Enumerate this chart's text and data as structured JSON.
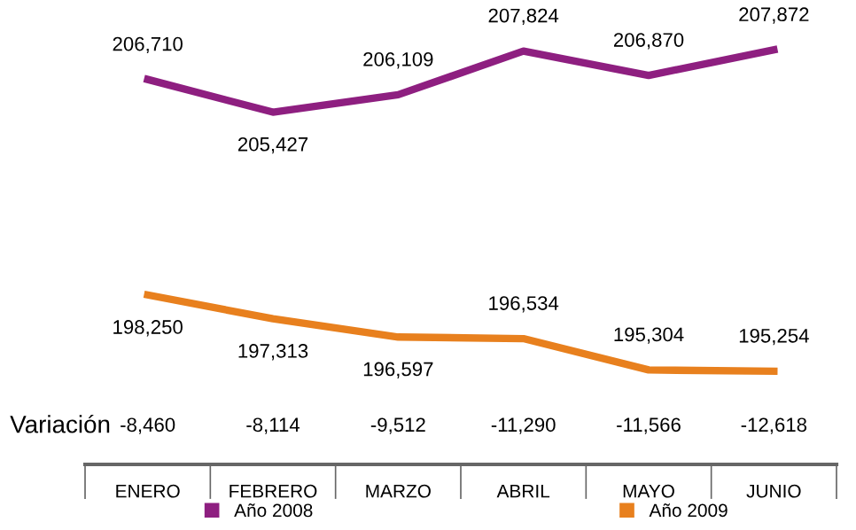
{
  "chart_data": {
    "type": "line",
    "categories": [
      "ENERO",
      "FEBRERO",
      "MARZO",
      "ABRIL",
      "MAYO",
      "JUNIO"
    ],
    "series": [
      {
        "name": "Año 2008",
        "color": "#8e1f80",
        "values": [
          206710,
          205427,
          206109,
          207824,
          206870,
          207872
        ],
        "value_labels": [
          "206,710",
          "205,427",
          "206,109",
          "207,824",
          "206,870",
          "207,872"
        ]
      },
      {
        "name": "Año 2009",
        "color": "#e8801e",
        "values": [
          198250,
          197313,
          196597,
          196534,
          195304,
          195254
        ],
        "value_labels": [
          "198,250",
          "197,313",
          "196,597",
          "196,534",
          "195,304",
          "195,254"
        ]
      }
    ],
    "tick_labels": "x",
    "grid": false,
    "legend": "bottom",
    "marker": "none",
    "line_style": "solid",
    "annotations": [
      "Variación",
      "-8,460",
      "-8,114",
      "-9,512",
      "-11,290",
      "-11,566",
      "-12,618"
    ]
  }
}
